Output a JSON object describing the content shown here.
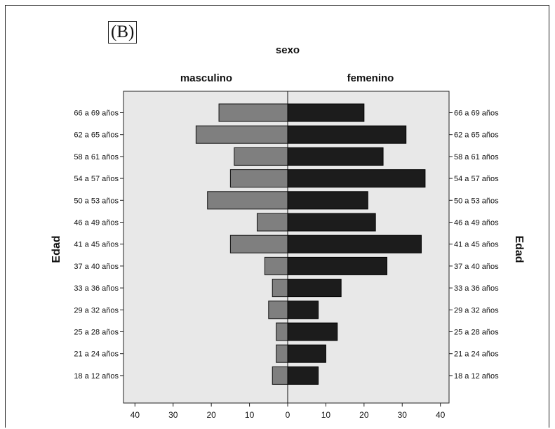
{
  "panel_label": "(B)",
  "chart_data": {
    "type": "bar",
    "orientation": "horizontal",
    "subtype": "population pyramid",
    "title": "sexo",
    "ylabel": "Edad",
    "ylabel_right": "Edad",
    "categories": [
      "66 a 69 años",
      "62 a 65 años",
      "58 a 61 años",
      "54 a 57 años",
      "50 a 53 años",
      "46 a 49 años",
      "41 a 45 años",
      "37 a 40 años",
      "33 a 36 años",
      "29 a 32 años",
      "25 a 28 años",
      "21 a 24 años",
      "18 a 12 años"
    ],
    "series": [
      {
        "name": "masculino",
        "side": "left",
        "color": "#7f7f7f",
        "values": [
          18,
          24,
          14,
          15,
          21,
          8,
          15,
          6,
          4,
          5,
          3,
          3,
          4
        ]
      },
      {
        "name": "femenino",
        "side": "right",
        "color": "#1c1c1c",
        "values": [
          20,
          31,
          25,
          36,
          21,
          23,
          35,
          26,
          14,
          8,
          13,
          10,
          8
        ]
      }
    ],
    "xlim": [
      0,
      43
    ],
    "x_ticks_left": [
      40,
      30,
      20,
      10,
      0
    ],
    "x_ticks_right": [
      0,
      10,
      20,
      30,
      40
    ],
    "plot_background": "#e8e8e8",
    "grid": false
  }
}
